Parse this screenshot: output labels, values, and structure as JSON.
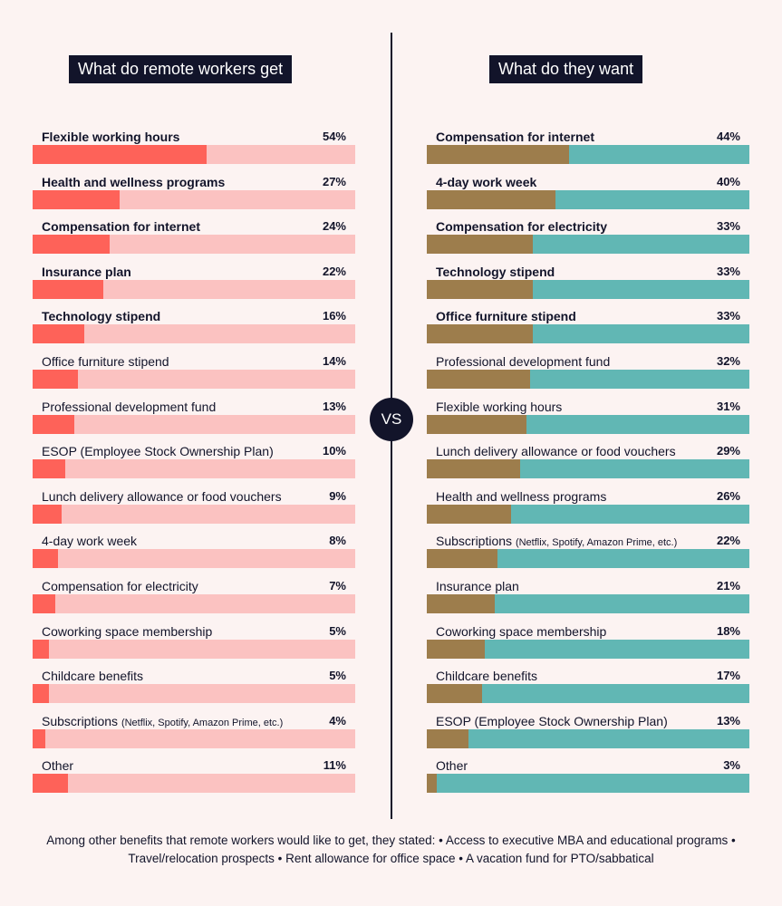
{
  "chart_data": [
    {
      "type": "bar",
      "title": "What do remote workers get",
      "colors": {
        "fill": "#fe6259",
        "track": "#fbc2c1"
      },
      "bold_top_n": 5,
      "categories": [
        "Flexible working hours",
        "Health and wellness programs",
        "Compensation for internet",
        "Insurance plan",
        "Technology stipend",
        "Office furniture stipend",
        "Professional development fund",
        "ESOP (Employee Stock Ownership Plan)",
        "Lunch delivery allowance or food vouchers",
        "4-day work week",
        "Compensation for electricity",
        "Coworking space membership",
        "Childcare benefits",
        "Subscriptions",
        "Other"
      ],
      "category_notes": [
        "",
        "",
        "",
        "",
        "",
        "",
        "",
        "",
        "",
        "",
        "",
        "",
        "",
        "(Netflix, Spotify, Amazon Prime, etc.)",
        ""
      ],
      "values": [
        54,
        27,
        24,
        22,
        16,
        14,
        13,
        10,
        9,
        8,
        7,
        5,
        5,
        4,
        11
      ],
      "value_labels": [
        "54%",
        "27%",
        "24%",
        "22%",
        "16%",
        "14%",
        "13%",
        "10%",
        "9%",
        "8%",
        "7%",
        "5%",
        "5%",
        "4%",
        "11%"
      ],
      "xlim": [
        0,
        100
      ]
    },
    {
      "type": "bar",
      "title": "What do they want",
      "colors": {
        "fill": "#9d7d4c",
        "track": "#61b7b4"
      },
      "bold_top_n": 5,
      "categories": [
        "Compensation for internet",
        "4-day work week",
        "Compensation for electricity",
        "Technology stipend",
        "Office furniture stipend",
        "Professional development fund",
        "Flexible working hours",
        "Lunch delivery allowance or food vouchers",
        "Health and wellness programs",
        "Subscriptions",
        "Insurance plan",
        "Coworking space membership",
        "Childcare benefits",
        "ESOP (Employee Stock Ownership Plan)",
        "Other"
      ],
      "category_notes": [
        "",
        "",
        "",
        "",
        "",
        "",
        "",
        "",
        "",
        "(Netflix, Spotify, Amazon Prime, etc.)",
        "",
        "",
        "",
        "",
        ""
      ],
      "values": [
        44,
        40,
        33,
        33,
        33,
        32,
        31,
        29,
        26,
        22,
        21,
        18,
        17,
        13,
        3
      ],
      "value_labels": [
        "44%",
        "40%",
        "33%",
        "33%",
        "33%",
        "32%",
        "31%",
        "29%",
        "26%",
        "22%",
        "21%",
        "18%",
        "17%",
        "13%",
        "3%"
      ],
      "xlim": [
        0,
        100
      ]
    }
  ],
  "vs_label": "VS",
  "footnote": "Among other benefits that remote workers would like to get, they stated: • Access to executive MBA and educational programs • Travel/relocation prospects • Rent allowance for office space • A vacation fund for PTO/sabbatical"
}
